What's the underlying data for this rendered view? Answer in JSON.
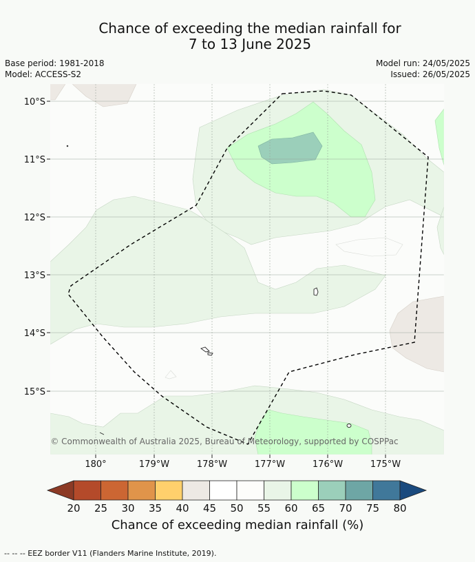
{
  "title_line1": "Chance of exceeding the median rainfall for",
  "title_line2": "7 to 13 June 2025",
  "base_period": "Base period: 1981-2018",
  "model": "Model: ACCESS-S2",
  "model_run": "Model run: 24/05/2025",
  "issued": "Issued: 26/05/2025",
  "latitudes": [
    "10°S",
    "11°S",
    "12°S",
    "13°S",
    "14°S",
    "15°S"
  ],
  "longitudes": [
    "180°",
    "179°W",
    "178°W",
    "177°W",
    "176°W",
    "175°W"
  ],
  "copyright": "© Commonwealth of Australia 2025, Bureau of Meteorology, supported by COSPPac",
  "colorbar": {
    "ticks": [
      "20",
      "25",
      "30",
      "35",
      "40",
      "45",
      "50",
      "55",
      "60",
      "65",
      "70",
      "75",
      "80"
    ],
    "colors": [
      "#b44a2a",
      "#cc6633",
      "#e0944a",
      "#ffd06c",
      "#ede9e4",
      "#ffffff",
      "#fdfdfb",
      "#e9f5e7",
      "#ccffcc",
      "#9bcfba",
      "#6ea6a5",
      "#40789a"
    ],
    "under_color": "#8c3a25",
    "over_color": "#1a4a7e",
    "label": "Chance of exceeding median rainfall (%)"
  },
  "footer": "--  --  -- EEZ border V11 (Flanders Marine Institute, 2019)."
}
